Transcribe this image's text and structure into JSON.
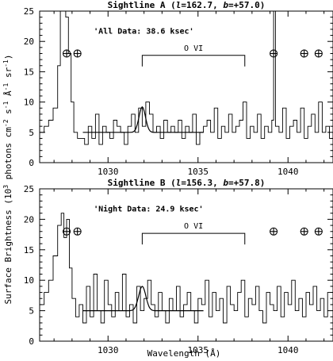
{
  "chart_data": [
    {
      "type": "line",
      "title": "Sightline A (l=162.7, b=+57.0)",
      "title_parts": [
        "Sightline A (",
        "l",
        "=162.7, ",
        "b",
        "=+57.0)"
      ],
      "annotation": "'All Data: 38.6 ksec'",
      "line_label": "O VI",
      "line_label_range": [
        1031.9,
        1037.6
      ],
      "xlim": [
        1026.2,
        1042.5
      ],
      "ylim": [
        0,
        25
      ],
      "xticks": [
        1030,
        1035,
        1040
      ],
      "xticklabels": [
        "1030",
        "1035",
        "1040"
      ],
      "yticks": [
        0,
        5,
        10,
        15,
        20,
        25
      ],
      "yticklabels": [
        "0",
        "5",
        "10",
        "15",
        "20",
        "25"
      ],
      "airglow_markers": [
        1027.7,
        1028.3,
        1039.2,
        1040.9,
        1041.7
      ],
      "model": {
        "name": "model fit",
        "center": 1031.9,
        "continuum": 5,
        "amplitude": 4.2,
        "sigma": 0.18,
        "x_range": [
          1028.6,
          1035.3
        ]
      },
      "series": [
        {
          "name": "spectrum",
          "x": [
            1026.2,
            1026.45,
            1026.7,
            1026.95,
            1027.2,
            1027.35,
            1027.5,
            1027.65,
            1027.8,
            1027.95,
            1028.1,
            1028.3,
            1028.5,
            1028.7,
            1028.9,
            1029.1,
            1029.3,
            1029.5,
            1029.7,
            1029.9,
            1030.1,
            1030.3,
            1030.5,
            1030.7,
            1030.9,
            1031.1,
            1031.3,
            1031.5,
            1031.7,
            1031.9,
            1032.1,
            1032.3,
            1032.5,
            1032.7,
            1032.9,
            1033.1,
            1033.3,
            1033.5,
            1033.7,
            1033.9,
            1034.1,
            1034.3,
            1034.5,
            1034.7,
            1034.9,
            1035.1,
            1035.3,
            1035.5,
            1035.7,
            1035.9,
            1036.1,
            1036.3,
            1036.5,
            1036.7,
            1036.9,
            1037.1,
            1037.3,
            1037.5,
            1037.7,
            1037.9,
            1038.1,
            1038.3,
            1038.5,
            1038.7,
            1038.9,
            1039.1,
            1039.2,
            1039.3,
            1039.5,
            1039.7,
            1039.9,
            1040.1,
            1040.3,
            1040.5,
            1040.7,
            1040.9,
            1041.1,
            1041.3,
            1041.5,
            1041.7,
            1041.9,
            1042.1,
            1042.3,
            1042.5
          ],
          "y": [
            5,
            6,
            7,
            9,
            16,
            25,
            28,
            24,
            18,
            10,
            5,
            4,
            4,
            3,
            6,
            4,
            8,
            3,
            6,
            5,
            4,
            7,
            6,
            5,
            3,
            6,
            8,
            5,
            9,
            6,
            10,
            8,
            5,
            6,
            4,
            7,
            5,
            6,
            5,
            7,
            4,
            6,
            5,
            8,
            3,
            5,
            6,
            7,
            5,
            9,
            4,
            6,
            5,
            8,
            5,
            6,
            7,
            10,
            4,
            6,
            5,
            8,
            4,
            6,
            5,
            7,
            25,
            6,
            5,
            9,
            4,
            6,
            7,
            5,
            9,
            4,
            6,
            8,
            5,
            10,
            5,
            6,
            4,
            7
          ]
        }
      ]
    },
    {
      "type": "line",
      "title": "Sightline B (l=156.3, b=+57.8)",
      "title_parts": [
        "Sightline B (",
        "l",
        "=156.3, ",
        "b",
        "=+57.8)"
      ],
      "annotation": "'Night Data: 24.9 ksec'",
      "line_label": "O VI",
      "line_label_range": [
        1031.9,
        1037.6
      ],
      "xlim": [
        1026.2,
        1042.5
      ],
      "ylim": [
        0,
        25
      ],
      "xticks": [
        1030,
        1035,
        1040
      ],
      "xticklabels": [
        "1030",
        "1035",
        "1040"
      ],
      "yticks": [
        0,
        5,
        10,
        15,
        20,
        25
      ],
      "yticklabels": [
        "0",
        "5",
        "10",
        "15",
        "20",
        "25"
      ],
      "airglow_markers": [
        1027.7,
        1028.3,
        1039.2,
        1040.9,
        1041.7
      ],
      "model": {
        "name": "model fit",
        "center": 1031.9,
        "continuum": 5,
        "amplitude": 4.0,
        "sigma": 0.2,
        "x_range": [
          1028.6,
          1035.3
        ]
      },
      "series": [
        {
          "name": "spectrum",
          "x": [
            1026.2,
            1026.45,
            1026.7,
            1026.95,
            1027.2,
            1027.4,
            1027.55,
            1027.7,
            1027.85,
            1028.0,
            1028.2,
            1028.4,
            1028.6,
            1028.8,
            1029.0,
            1029.2,
            1029.4,
            1029.6,
            1029.8,
            1030.0,
            1030.2,
            1030.4,
            1030.6,
            1030.8,
            1031.0,
            1031.2,
            1031.4,
            1031.6,
            1031.8,
            1032.0,
            1032.2,
            1032.4,
            1032.6,
            1032.8,
            1033.0,
            1033.2,
            1033.4,
            1033.6,
            1033.8,
            1034.0,
            1034.2,
            1034.4,
            1034.6,
            1034.8,
            1035.0,
            1035.2,
            1035.4,
            1035.6,
            1035.8,
            1036.0,
            1036.2,
            1036.4,
            1036.6,
            1036.8,
            1037.0,
            1037.2,
            1037.4,
            1037.6,
            1037.8,
            1038.0,
            1038.2,
            1038.4,
            1038.6,
            1038.8,
            1039.0,
            1039.2,
            1039.4,
            1039.6,
            1039.8,
            1040.0,
            1040.2,
            1040.4,
            1040.6,
            1040.8,
            1041.0,
            1041.2,
            1041.4,
            1041.6,
            1041.8,
            1042.0,
            1042.2,
            1042.5
          ],
          "y": [
            6,
            8,
            10,
            14,
            19,
            21,
            17,
            20,
            12,
            7,
            4,
            6,
            3,
            9,
            4,
            11,
            5,
            3,
            10,
            6,
            4,
            8,
            5,
            11,
            4,
            6,
            3,
            9,
            5,
            7,
            10,
            6,
            4,
            8,
            5,
            3,
            7,
            5,
            9,
            4,
            6,
            8,
            5,
            3,
            7,
            6,
            10,
            4,
            8,
            5,
            7,
            3,
            9,
            6,
            5,
            8,
            10,
            4,
            7,
            6,
            9,
            5,
            3,
            8,
            6,
            5,
            9,
            4,
            8,
            6,
            10,
            5,
            7,
            4,
            8,
            6,
            9,
            5,
            7,
            4,
            8,
            6
          ]
        }
      ]
    }
  ],
  "shared": {
    "xlabel": "Wavelength (Å)",
    "ylabel_parts": [
      "Surface Brightness (10",
      "3",
      " photons cm",
      "-2",
      " s",
      "-1",
      " Å",
      "-1",
      " sr",
      "-1",
      ")"
    ]
  }
}
